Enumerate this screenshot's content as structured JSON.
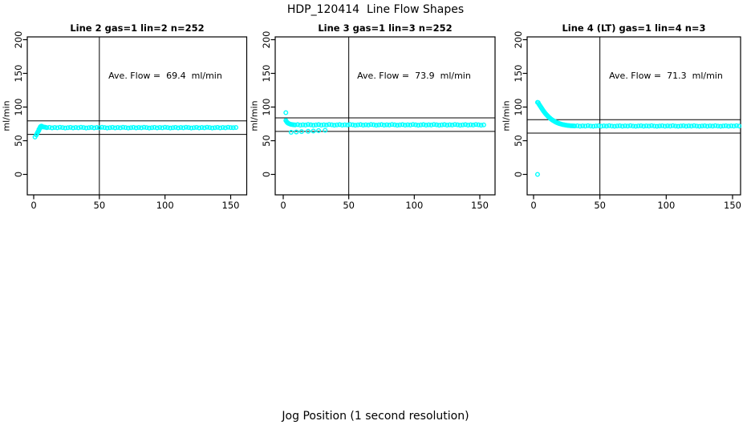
{
  "figure": {
    "title": "HDP_120414  Line Flow Shapes",
    "xlabel": "Jog Position (1 second resolution)",
    "background": "#ffffff",
    "marker_color": "#00ffff",
    "line_color": "#000000"
  },
  "chart_data": [
    {
      "type": "scatter",
      "title": "Line 2 gas=1 lin=2 n=252",
      "ylabel": "ml/min",
      "annotation": "Ave. Flow =  69.4  ml/min",
      "ave_flow_ml_min": 69.4,
      "gas": 1,
      "lin": 2,
      "n": 252,
      "xlim": [
        0,
        150
      ],
      "ylim": [
        0,
        200
      ],
      "xticks": [
        0,
        50,
        100,
        150
      ],
      "yticks": [
        0,
        50,
        100,
        150,
        200
      ],
      "hlines": [
        79.4,
        59.4
      ],
      "vline_x": 50,
      "marker": "open-circle",
      "marker_color": "#00ffff",
      "grid": false,
      "points": [
        [
          1,
          55.5
        ],
        [
          2,
          58.5
        ],
        [
          2.5,
          60.5
        ],
        [
          3,
          62.5
        ],
        [
          3.5,
          64
        ],
        [
          4,
          65.5
        ],
        [
          4,
          67
        ],
        [
          4.5,
          68
        ],
        [
          5,
          69
        ],
        [
          5,
          70.5
        ],
        [
          5.5,
          71.5
        ],
        [
          6,
          71.8
        ],
        [
          6.5,
          71.2
        ],
        [
          7,
          70.6
        ],
        [
          8,
          70.2
        ],
        [
          9,
          69.9
        ],
        [
          10,
          69.4
        ],
        [
          12,
          69.8
        ],
        [
          14,
          69.1
        ],
        [
          16,
          69.6
        ],
        [
          18,
          69.2
        ],
        [
          20,
          70
        ],
        [
          22,
          69.5
        ],
        [
          24,
          68.9
        ],
        [
          26,
          69.4
        ],
        [
          28,
          69.8
        ],
        [
          30,
          69.1
        ],
        [
          32,
          69.6
        ],
        [
          34,
          69.2
        ],
        [
          36,
          70
        ],
        [
          38,
          69.5
        ],
        [
          40,
          68.9
        ],
        [
          42,
          69.4
        ],
        [
          44,
          69.8
        ],
        [
          46,
          69.1
        ],
        [
          48,
          69.6
        ],
        [
          50,
          69.2
        ],
        [
          52,
          70
        ],
        [
          54,
          69.5
        ],
        [
          56,
          68.9
        ],
        [
          58,
          69.4
        ],
        [
          60,
          69.8
        ],
        [
          62,
          69.1
        ],
        [
          64,
          69.6
        ],
        [
          66,
          69.2
        ],
        [
          68,
          70
        ],
        [
          70,
          69.5
        ],
        [
          72,
          68.9
        ],
        [
          74,
          69.4
        ],
        [
          76,
          69.8
        ],
        [
          78,
          69.1
        ],
        [
          80,
          69.6
        ],
        [
          82,
          69.2
        ],
        [
          84,
          70
        ],
        [
          86,
          69.5
        ],
        [
          88,
          68.9
        ],
        [
          90,
          69.4
        ],
        [
          92,
          69.8
        ],
        [
          94,
          69.1
        ],
        [
          96,
          69.6
        ],
        [
          98,
          69.2
        ],
        [
          100,
          70
        ],
        [
          102,
          69.5
        ],
        [
          104,
          68.9
        ],
        [
          106,
          69.4
        ],
        [
          108,
          69.8
        ],
        [
          110,
          69.1
        ],
        [
          112,
          69.6
        ],
        [
          114,
          69.2
        ],
        [
          116,
          70
        ],
        [
          118,
          69.5
        ],
        [
          120,
          68.9
        ],
        [
          122,
          69.4
        ],
        [
          124,
          69.8
        ],
        [
          126,
          69.1
        ],
        [
          128,
          69.6
        ],
        [
          130,
          69.2
        ],
        [
          132,
          70
        ],
        [
          134,
          69.5
        ],
        [
          136,
          68.9
        ],
        [
          138,
          69.4
        ],
        [
          140,
          69.8
        ],
        [
          142,
          69.1
        ],
        [
          144,
          69.6
        ],
        [
          146,
          69.2
        ],
        [
          148,
          70
        ],
        [
          150,
          69.5
        ],
        [
          152,
          69.4
        ],
        [
          154,
          69.6
        ]
      ]
    },
    {
      "type": "scatter",
      "title": "Line 3 gas=1 lin=3 n=252",
      "ylabel": "ml/min",
      "annotation": "Ave. Flow =  73.9  ml/min",
      "ave_flow_ml_min": 73.9,
      "gas": 1,
      "lin": 3,
      "n": 252,
      "xlim": [
        0,
        150
      ],
      "ylim": [
        0,
        200
      ],
      "xticks": [
        0,
        50,
        100,
        150
      ],
      "yticks": [
        0,
        50,
        100,
        150,
        200
      ],
      "hlines": [
        83.9,
        63.9
      ],
      "vline_x": 50,
      "marker": "open-circle",
      "marker_color": "#00ffff",
      "grid": false,
      "points": [
        [
          2,
          91.7
        ],
        [
          2,
          80
        ],
        [
          2.5,
          78.5
        ],
        [
          3,
          77.3
        ],
        [
          3.5,
          76.4
        ],
        [
          4,
          75.7
        ],
        [
          5,
          74.8
        ],
        [
          6,
          74.2
        ],
        [
          7,
          73.9
        ],
        [
          8,
          73.7
        ],
        [
          6,
          62.5
        ],
        [
          10,
          63
        ],
        [
          14,
          63.5
        ],
        [
          19,
          64
        ],
        [
          23,
          64.5
        ],
        [
          27,
          65
        ],
        [
          32,
          65.5
        ],
        [
          9,
          73.5
        ],
        [
          11,
          73.9
        ],
        [
          13,
          73.2
        ],
        [
          15,
          73.7
        ],
        [
          17,
          73.3
        ],
        [
          19,
          74.1
        ],
        [
          21,
          73.6
        ],
        [
          23,
          73
        ],
        [
          25,
          73.5
        ],
        [
          27,
          73.9
        ],
        [
          29,
          73.2
        ],
        [
          31,
          73.7
        ],
        [
          33,
          73.3
        ],
        [
          35,
          74.1
        ],
        [
          37,
          73.6
        ],
        [
          39,
          73
        ],
        [
          41,
          73.5
        ],
        [
          43,
          73.9
        ],
        [
          45,
          73.2
        ],
        [
          47,
          73.7
        ],
        [
          49,
          73.3
        ],
        [
          51,
          74.1
        ],
        [
          53,
          73.6
        ],
        [
          55,
          73
        ],
        [
          57,
          73.5
        ],
        [
          59,
          73.9
        ],
        [
          61,
          73.2
        ],
        [
          63,
          73.7
        ],
        [
          65,
          73.3
        ],
        [
          67,
          74.1
        ],
        [
          69,
          73.6
        ],
        [
          71,
          73
        ],
        [
          73,
          73.5
        ],
        [
          75,
          73.9
        ],
        [
          77,
          73.2
        ],
        [
          79,
          73.7
        ],
        [
          81,
          73.3
        ],
        [
          83,
          74.1
        ],
        [
          85,
          73.6
        ],
        [
          87,
          73
        ],
        [
          89,
          73.5
        ],
        [
          91,
          73.9
        ],
        [
          93,
          73.2
        ],
        [
          95,
          73.7
        ],
        [
          97,
          73.3
        ],
        [
          99,
          74.1
        ],
        [
          101,
          73.6
        ],
        [
          103,
          73
        ],
        [
          105,
          73.5
        ],
        [
          107,
          73.9
        ],
        [
          109,
          73.2
        ],
        [
          111,
          73.7
        ],
        [
          113,
          73.3
        ],
        [
          115,
          74.1
        ],
        [
          117,
          73.6
        ],
        [
          119,
          73
        ],
        [
          121,
          73.5
        ],
        [
          123,
          73.9
        ],
        [
          125,
          73.2
        ],
        [
          127,
          73.7
        ],
        [
          129,
          73.3
        ],
        [
          131,
          74.1
        ],
        [
          133,
          73.6
        ],
        [
          135,
          73
        ],
        [
          137,
          73.5
        ],
        [
          139,
          73.9
        ],
        [
          141,
          73.2
        ],
        [
          143,
          73.7
        ],
        [
          145,
          73.3
        ],
        [
          147,
          74.1
        ],
        [
          149,
          73.6
        ],
        [
          151,
          73
        ],
        [
          153,
          73.5
        ]
      ]
    },
    {
      "type": "scatter",
      "title": "Line 4 (LT) gas=1 lin=4 n=3",
      "ylabel": "ml/min",
      "annotation": "Ave. Flow =  71.3  ml/min",
      "ave_flow_ml_min": 71.3,
      "gas": 1,
      "lin": 4,
      "n": 3,
      "xlim": [
        0,
        150
      ],
      "ylim": [
        0,
        200
      ],
      "xticks": [
        0,
        50,
        100,
        150
      ],
      "yticks": [
        0,
        50,
        100,
        150,
        200
      ],
      "hlines": [
        81.3,
        61.3
      ],
      "vline_x": 50,
      "marker": "open-circle",
      "marker_color": "#00ffff",
      "grid": false,
      "points": [
        [
          3,
          0
        ],
        [
          3,
          107
        ],
        [
          3.5,
          106.5
        ],
        [
          4,
          104.5
        ],
        [
          4.5,
          103
        ],
        [
          5,
          101.5
        ],
        [
          5.5,
          100
        ],
        [
          6,
          98.5
        ],
        [
          6.5,
          97
        ],
        [
          7,
          95.5
        ],
        [
          7.5,
          94
        ],
        [
          8,
          92.8
        ],
        [
          8.5,
          91.5
        ],
        [
          9,
          90.3
        ],
        [
          9.5,
          89.2
        ],
        [
          10,
          88.1
        ],
        [
          10.5,
          87
        ],
        [
          11,
          86
        ],
        [
          11.5,
          85
        ],
        [
          12,
          84.1
        ],
        [
          12.5,
          83.3
        ],
        [
          13,
          82.5
        ],
        [
          13.5,
          81.7
        ],
        [
          14,
          81
        ],
        [
          14.5,
          80.3
        ],
        [
          15,
          79.7
        ],
        [
          15.5,
          79.1
        ],
        [
          16,
          78.5
        ],
        [
          16.5,
          78
        ],
        [
          17,
          77.5
        ],
        [
          17.5,
          77
        ],
        [
          18,
          76.6
        ],
        [
          18.5,
          76.2
        ],
        [
          19,
          75.8
        ],
        [
          19.5,
          75.4
        ],
        [
          20,
          75.1
        ],
        [
          21,
          74.5
        ],
        [
          22,
          74
        ],
        [
          23,
          73.6
        ],
        [
          24,
          73.2
        ],
        [
          25,
          72.9
        ],
        [
          26,
          72.6
        ],
        [
          27,
          72.4
        ],
        [
          28,
          72.2
        ],
        [
          29,
          72.1
        ],
        [
          30,
          72
        ],
        [
          31,
          71.9
        ],
        [
          33,
          72.2
        ],
        [
          35,
          71.6
        ],
        [
          37,
          72
        ],
        [
          39,
          71.7
        ],
        [
          41,
          72.3
        ],
        [
          43,
          71.8
        ],
        [
          45,
          71.5
        ],
        [
          47,
          71.9
        ],
        [
          49,
          72.2
        ],
        [
          51,
          71.6
        ],
        [
          53,
          72
        ],
        [
          55,
          71.7
        ],
        [
          57,
          72.3
        ],
        [
          59,
          71.8
        ],
        [
          61,
          71.5
        ],
        [
          63,
          71.9
        ],
        [
          65,
          72.2
        ],
        [
          67,
          71.6
        ],
        [
          69,
          72
        ],
        [
          71,
          71.7
        ],
        [
          73,
          72.3
        ],
        [
          75,
          71.8
        ],
        [
          77,
          71.5
        ],
        [
          79,
          71.9
        ],
        [
          81,
          72.2
        ],
        [
          83,
          71.6
        ],
        [
          85,
          72
        ],
        [
          87,
          71.7
        ],
        [
          89,
          72.3
        ],
        [
          91,
          71.8
        ],
        [
          93,
          71.5
        ],
        [
          95,
          71.9
        ],
        [
          97,
          72.2
        ],
        [
          99,
          71.6
        ],
        [
          101,
          72
        ],
        [
          103,
          71.7
        ],
        [
          105,
          72.3
        ],
        [
          107,
          71.8
        ],
        [
          109,
          71.5
        ],
        [
          111,
          71.9
        ],
        [
          113,
          72.2
        ],
        [
          115,
          71.6
        ],
        [
          117,
          72
        ],
        [
          119,
          71.7
        ],
        [
          121,
          72.3
        ],
        [
          123,
          71.8
        ],
        [
          125,
          71.5
        ],
        [
          127,
          71.9
        ],
        [
          129,
          72.2
        ],
        [
          131,
          71.6
        ],
        [
          133,
          72
        ],
        [
          135,
          71.7
        ],
        [
          137,
          72.3
        ],
        [
          139,
          71.8
        ],
        [
          141,
          71.5
        ],
        [
          143,
          71.9
        ],
        [
          145,
          72.2
        ],
        [
          147,
          71.6
        ],
        [
          149,
          72
        ],
        [
          151,
          71.7
        ],
        [
          153,
          72.3
        ],
        [
          155,
          71.8
        ]
      ]
    }
  ]
}
